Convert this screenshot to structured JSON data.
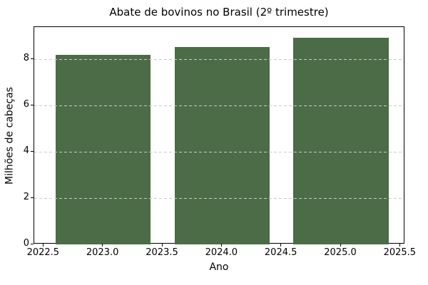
{
  "chart_data": {
    "type": "bar",
    "title": "Abate de bovinos no Brasil (2º trimestre)",
    "xlabel": "Ano",
    "ylabel": "Milhões de cabeças",
    "categories": [
      2023,
      2024,
      2025
    ],
    "values": [
      8.2,
      8.55,
      8.95
    ],
    "bar_width": 0.8,
    "bar_color": "#4c6b47",
    "xlim": [
      2022.42,
      2025.54
    ],
    "ylim": [
      0,
      9.4
    ],
    "x_ticks": [
      2022.5,
      2023.0,
      2023.5,
      2024.0,
      2024.5,
      2025.0,
      2025.5
    ],
    "x_tick_labels": [
      "2022.5",
      "2023.0",
      "2023.5",
      "2024.0",
      "2024.5",
      "2025.0",
      "2025.5"
    ],
    "y_ticks": [
      0,
      2,
      4,
      6,
      8
    ],
    "y_tick_labels": [
      "0",
      "2",
      "4",
      "6",
      "8"
    ],
    "grid": {
      "axis": "y",
      "style": "dashed",
      "color": "#cacaca",
      "over_bars": true
    },
    "legend": "none",
    "spines": "box",
    "background": "#ffffff",
    "text_color": "#000000"
  }
}
